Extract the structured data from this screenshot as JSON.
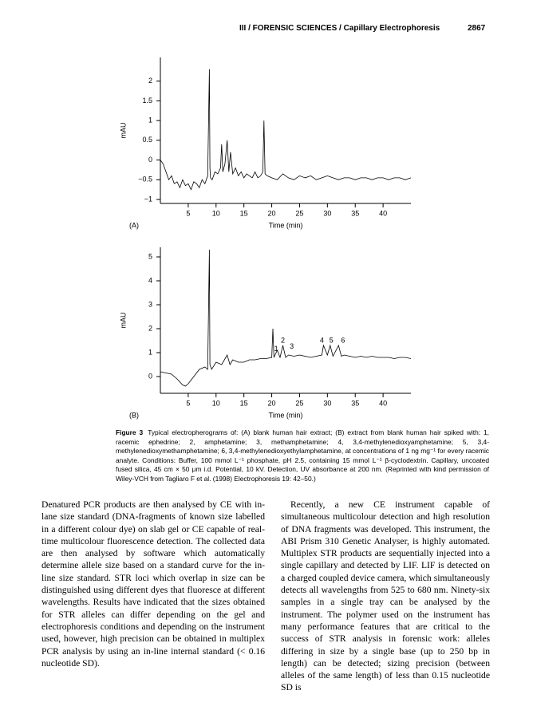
{
  "header": {
    "running_title": "III / FORENSIC SCIENCES / Capillary Electrophoresis",
    "page_number": "2867"
  },
  "chart_data": [
    {
      "type": "line",
      "panel_label": "(A)",
      "ylabel": "mAU",
      "xlabel": "Time (min)",
      "color": "#000000",
      "xlim": [
        0,
        45
      ],
      "ylim": [
        -1.1,
        2.6
      ],
      "xticks": [
        5,
        10,
        15,
        20,
        25,
        30,
        35,
        40
      ],
      "yticks": [
        {
          "value": -1,
          "label": "−1"
        },
        {
          "value": -0.5,
          "label": "−0.5"
        },
        0,
        0.5,
        1,
        1.5,
        2
      ],
      "x": [
        0,
        0.5,
        1,
        1.5,
        2,
        2.5,
        3,
        3.5,
        4,
        4.5,
        5,
        5.5,
        6,
        6.5,
        7,
        7.5,
        8,
        8.5,
        8.8,
        8.9,
        9.0,
        9.3,
        9.8,
        10.3,
        10.8,
        11.0,
        11.2,
        11.6,
        12.0,
        12.3,
        12.6,
        13.0,
        13.5,
        14,
        14.5,
        15,
        15.5,
        16,
        16.5,
        17,
        17.5,
        18,
        18.4,
        18.6,
        18.8,
        19.2,
        20,
        21,
        22,
        23,
        24,
        25,
        26,
        27,
        28,
        29,
        30,
        31,
        32,
        33,
        34,
        35,
        36,
        37,
        38,
        39,
        40,
        41,
        42,
        43,
        44,
        45
      ],
      "values": [
        0,
        -0.1,
        -0.3,
        -0.5,
        -0.4,
        -0.6,
        -0.55,
        -0.7,
        -0.5,
        -0.65,
        -0.6,
        -0.75,
        -0.55,
        -0.6,
        -0.7,
        -0.5,
        -0.6,
        -0.4,
        2.3,
        -0.2,
        -0.45,
        -0.5,
        -0.3,
        -0.35,
        -0.2,
        0.4,
        -0.3,
        -0.1,
        0.5,
        -0.3,
        0.2,
        -0.35,
        -0.2,
        -0.4,
        -0.3,
        -0.45,
        -0.35,
        -0.4,
        -0.45,
        -0.3,
        -0.45,
        -0.4,
        -0.3,
        1.0,
        -0.35,
        -0.4,
        -0.45,
        -0.5,
        -0.35,
        -0.45,
        -0.5,
        -0.4,
        -0.45,
        -0.4,
        -0.5,
        -0.45,
        -0.4,
        -0.45,
        -0.5,
        -0.45,
        -0.45,
        -0.5,
        -0.45,
        -0.45,
        -0.5,
        -0.45,
        -0.45,
        -0.5,
        -0.45,
        -0.45,
        -0.5,
        -0.45
      ]
    },
    {
      "type": "line",
      "panel_label": "(B)",
      "ylabel": "mAU",
      "xlabel": "Time (min)",
      "color": "#000000",
      "xlim": [
        0,
        45
      ],
      "ylim": [
        -0.7,
        5.4
      ],
      "xticks": [
        5,
        10,
        15,
        20,
        25,
        30,
        35,
        40
      ],
      "yticks": [
        0,
        1,
        2,
        3,
        4,
        5
      ],
      "x": [
        0,
        1,
        2,
        3,
        4,
        4.5,
        5,
        6,
        7,
        8,
        8.5,
        8.8,
        8.9,
        9.2,
        10,
        11,
        12,
        12.5,
        13,
        14,
        15,
        16,
        17,
        18,
        19,
        20,
        20.2,
        20.4,
        21,
        21.5,
        22,
        22.5,
        23,
        24,
        25,
        26,
        27,
        28,
        29,
        29.3,
        30,
        30.5,
        31,
        32,
        32.5,
        33,
        34,
        35,
        36,
        37,
        38,
        39,
        40,
        41,
        42,
        43,
        44,
        45
      ],
      "values": [
        0.2,
        0.15,
        0.1,
        -0.1,
        -0.35,
        -0.4,
        -0.3,
        0,
        0.3,
        0.4,
        0.3,
        5.3,
        0.5,
        0.3,
        0.6,
        0.5,
        0.9,
        0.5,
        0.7,
        0.6,
        0.6,
        0.7,
        0.7,
        0.75,
        0.75,
        0.8,
        2.0,
        0.8,
        1.1,
        0.8,
        1.3,
        0.8,
        0.9,
        0.85,
        0.9,
        0.85,
        0.8,
        0.85,
        0.9,
        1.3,
        0.9,
        1.3,
        0.85,
        1.3,
        0.85,
        0.9,
        0.85,
        0.8,
        0.85,
        0.8,
        0.85,
        0.8,
        0.8,
        0.8,
        0.75,
        0.8,
        0.8,
        0.75
      ],
      "annotations": [
        {
          "label": "1",
          "x": 20.8,
          "y": 1.15
        },
        {
          "label": "2",
          "x": 22,
          "y": 1.5
        },
        {
          "label": "3",
          "x": 23.6,
          "y": 1.25
        },
        {
          "label": "4",
          "x": 29,
          "y": 1.5
        },
        {
          "label": "5",
          "x": 30.7,
          "y": 1.5
        },
        {
          "label": "6",
          "x": 32.8,
          "y": 1.5
        }
      ]
    }
  ],
  "figure": {
    "label": "Figure 3",
    "caption": "Typical electropherograms of: (A) blank human hair extract; (B) extract from blank human hair spiked with: 1, racemic ephedrine; 2, amphetamine; 3, methamphetamine; 4, 3,4-methylenedioxyamphetamine; 5, 3,4-methylenedioxymethamphetamine; 6, 3,4-methylenedioxyethylamphetamine, at concentrations of 1 ng mg⁻¹ for every racemic analyte. Conditions: Buffer, 100 mmol L⁻¹ phosphate, pH 2.5, containing 15 mmol L⁻¹ β-cyclodextrin. Capillary, uncoated fused silica, 45 cm × 50 μm i.d. Potential, 10 kV. Detection, UV absorbance at 200 nm. (Reprinted with kind permission of Wiley-VCH from Tagliaro F et al. (1998) Electrophoresis 19: 42–50.)"
  },
  "body": {
    "left": "Denatured PCR products are then analysed by CE with in-lane size standard (DNA-fragments of known size labelled in a different colour dye) on slab gel or CE capable of real-time multicolour fluorescence detection. The collected data are then analysed by software which automatically determine allele size based on a standard curve for the in-line size standard. STR loci which overlap in size can be distinguished using different dyes that fluoresce at different wavelengths. Results have indicated that the sizes obtained for STR alleles can differ depending on the gel and electrophoresis conditions and depending on the instrument used, however, high precision can be obtained in multiplex PCR analysis by using an in-line internal standard (< 0.16 nucleotide SD).",
    "right": "Recently, a new CE instrument capable of simultaneous multicolour detection and high resolution of DNA fragments was developed. This instrument, the ABI Prism 310 Genetic Analyser, is highly automated. Multiplex STR products are sequentially injected into a single capillary and detected by LIF. LIF is detected on a charged coupled device camera, which simultaneously detects all wavelengths from 525 to 680 nm. Ninety-six samples in a single tray can be analysed by the instrument. The polymer used on the instrument has many performance features that are critical to the success of STR analysis in forensic work: alleles differing in size by a single base (up to 250 bp in length) can be detected; sizing precision (between alleles of the same length) of less than 0.15 nucleotide SD is"
  }
}
